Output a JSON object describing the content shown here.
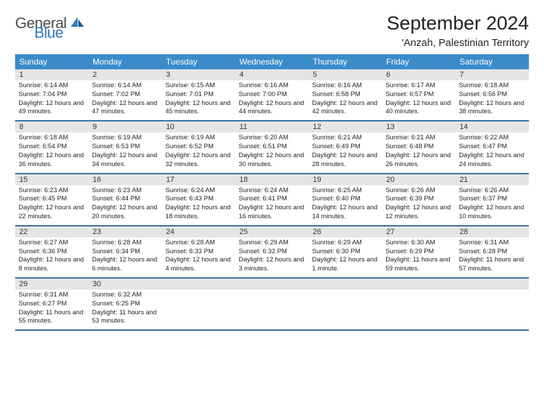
{
  "logo": {
    "general": "General",
    "blue": "Blue"
  },
  "title": "September 2024",
  "location": "'Anzah, Palestinian Territory",
  "colors": {
    "header_bg": "#3b8bc9",
    "header_text": "#ffffff",
    "border": "#3b6ea0",
    "daynum_bg": "#e5e5e5",
    "logo_blue": "#2f7ac0",
    "logo_gray": "#4a4a4a",
    "text": "#222222",
    "bg": "#ffffff"
  },
  "weekdays": [
    "Sunday",
    "Monday",
    "Tuesday",
    "Wednesday",
    "Thursday",
    "Friday",
    "Saturday"
  ],
  "weeks": [
    [
      {
        "n": "1",
        "sr": "6:14 AM",
        "ss": "7:04 PM",
        "dl": "12 hours and 49 minutes."
      },
      {
        "n": "2",
        "sr": "6:14 AM",
        "ss": "7:02 PM",
        "dl": "12 hours and 47 minutes."
      },
      {
        "n": "3",
        "sr": "6:15 AM",
        "ss": "7:01 PM",
        "dl": "12 hours and 45 minutes."
      },
      {
        "n": "4",
        "sr": "6:16 AM",
        "ss": "7:00 PM",
        "dl": "12 hours and 44 minutes."
      },
      {
        "n": "5",
        "sr": "6:16 AM",
        "ss": "6:58 PM",
        "dl": "12 hours and 42 minutes."
      },
      {
        "n": "6",
        "sr": "6:17 AM",
        "ss": "6:57 PM",
        "dl": "12 hours and 40 minutes."
      },
      {
        "n": "7",
        "sr": "6:18 AM",
        "ss": "6:56 PM",
        "dl": "12 hours and 38 minutes."
      }
    ],
    [
      {
        "n": "8",
        "sr": "6:18 AM",
        "ss": "6:54 PM",
        "dl": "12 hours and 36 minutes."
      },
      {
        "n": "9",
        "sr": "6:19 AM",
        "ss": "6:53 PM",
        "dl": "12 hours and 34 minutes."
      },
      {
        "n": "10",
        "sr": "6:19 AM",
        "ss": "6:52 PM",
        "dl": "12 hours and 32 minutes."
      },
      {
        "n": "11",
        "sr": "6:20 AM",
        "ss": "6:51 PM",
        "dl": "12 hours and 30 minutes."
      },
      {
        "n": "12",
        "sr": "6:21 AM",
        "ss": "6:49 PM",
        "dl": "12 hours and 28 minutes."
      },
      {
        "n": "13",
        "sr": "6:21 AM",
        "ss": "6:48 PM",
        "dl": "12 hours and 26 minutes."
      },
      {
        "n": "14",
        "sr": "6:22 AM",
        "ss": "6:47 PM",
        "dl": "12 hours and 24 minutes."
      }
    ],
    [
      {
        "n": "15",
        "sr": "6:23 AM",
        "ss": "6:45 PM",
        "dl": "12 hours and 22 minutes."
      },
      {
        "n": "16",
        "sr": "6:23 AM",
        "ss": "6:44 PM",
        "dl": "12 hours and 20 minutes."
      },
      {
        "n": "17",
        "sr": "6:24 AM",
        "ss": "6:43 PM",
        "dl": "12 hours and 18 minutes."
      },
      {
        "n": "18",
        "sr": "6:24 AM",
        "ss": "6:41 PM",
        "dl": "12 hours and 16 minutes."
      },
      {
        "n": "19",
        "sr": "6:25 AM",
        "ss": "6:40 PM",
        "dl": "12 hours and 14 minutes."
      },
      {
        "n": "20",
        "sr": "6:26 AM",
        "ss": "6:39 PM",
        "dl": "12 hours and 12 minutes."
      },
      {
        "n": "21",
        "sr": "6:26 AM",
        "ss": "6:37 PM",
        "dl": "12 hours and 10 minutes."
      }
    ],
    [
      {
        "n": "22",
        "sr": "6:27 AM",
        "ss": "6:36 PM",
        "dl": "12 hours and 8 minutes."
      },
      {
        "n": "23",
        "sr": "6:28 AM",
        "ss": "6:34 PM",
        "dl": "12 hours and 6 minutes."
      },
      {
        "n": "24",
        "sr": "6:28 AM",
        "ss": "6:33 PM",
        "dl": "12 hours and 4 minutes."
      },
      {
        "n": "25",
        "sr": "6:29 AM",
        "ss": "6:32 PM",
        "dl": "12 hours and 3 minutes."
      },
      {
        "n": "26",
        "sr": "6:29 AM",
        "ss": "6:30 PM",
        "dl": "12 hours and 1 minute."
      },
      {
        "n": "27",
        "sr": "6:30 AM",
        "ss": "6:29 PM",
        "dl": "11 hours and 59 minutes."
      },
      {
        "n": "28",
        "sr": "6:31 AM",
        "ss": "6:28 PM",
        "dl": "11 hours and 57 minutes."
      }
    ],
    [
      {
        "n": "29",
        "sr": "6:31 AM",
        "ss": "6:27 PM",
        "dl": "11 hours and 55 minutes."
      },
      {
        "n": "30",
        "sr": "6:32 AM",
        "ss": "6:25 PM",
        "dl": "11 hours and 53 minutes."
      },
      null,
      null,
      null,
      null,
      null
    ]
  ],
  "labels": {
    "sunrise": "Sunrise:",
    "sunset": "Sunset:",
    "daylight": "Daylight:"
  }
}
